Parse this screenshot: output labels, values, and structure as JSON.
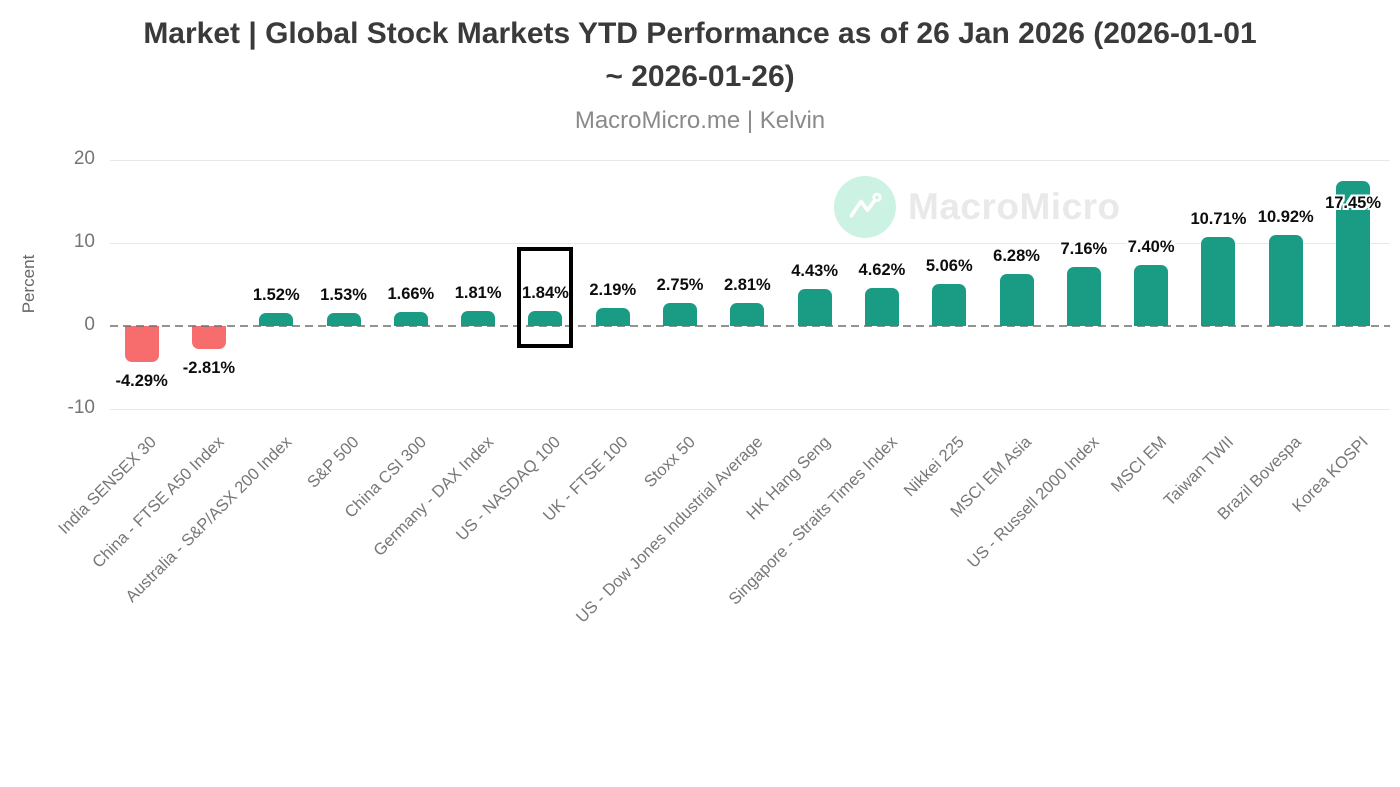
{
  "header": {
    "title": "Market | Global Stock Markets YTD Performance as of 26 Jan 2026 (2026-01-01 ~ 2026-01-26)",
    "title_line1": "Market | Global Stock Markets YTD Performance as of 26 Jan 2026 (2026-01-01",
    "title_line2": "~ 2026-01-26)",
    "subtitle": "MacroMicro.me | Kelvin"
  },
  "watermark": {
    "brand": "MacroMicro",
    "icon": "macromicro-logo-icon",
    "circle_color": "#ccf2e4",
    "text_color": "#e9e9e9"
  },
  "chart_data": {
    "type": "bar",
    "title": "Market | Global Stock Markets YTD Performance as of 26 Jan 2026 (2026-01-01 ~ 2026-01-26)",
    "subtitle": "MacroMicro.me | Kelvin",
    "xlabel": "",
    "ylabel": "Percent",
    "yticks": [
      20,
      10,
      0,
      -10
    ],
    "ylim": [
      -13,
      22
    ],
    "grid": true,
    "zero_line_style": "dashed",
    "x_label_rotation_deg": -45,
    "categories": [
      "India SENSEX 30",
      "China - FTSE A50 Index",
      "Australia - S&P/ASX 200 Index",
      "S&P 500",
      "China CSI 300",
      "Germany - DAX Index",
      "US - NASDAQ 100",
      "UK - FTSE 100",
      "Stoxx 50",
      "US - Dow Jones Industrial Average",
      "HK Hang Seng",
      "Singapore - Straits Times Index",
      "Nikkei 225",
      "MSCI EM Asia",
      "US - Russell 2000 Index",
      "MSCI EM",
      "Taiwan TWII",
      "Brazil Bovespa",
      "Korea KOSPI"
    ],
    "values": [
      -4.29,
      -2.81,
      1.52,
      1.53,
      1.66,
      1.81,
      1.84,
      2.19,
      2.75,
      2.81,
      4.43,
      4.62,
      5.06,
      6.28,
      7.16,
      7.4,
      10.71,
      10.92,
      17.45
    ],
    "labels": [
      "-4.29%",
      "-2.81%",
      "1.52%",
      "1.53%",
      "1.66%",
      "1.81%",
      "1.84%",
      "2.19%",
      "2.75%",
      "2.81%",
      "4.43%",
      "4.62%",
      "5.06%",
      "6.28%",
      "7.16%",
      "7.40%",
      "10.71%",
      "10.92%",
      "17.45%"
    ],
    "colors": {
      "positive": "#1a9c84",
      "negative": "#f76d6d",
      "highlight_border": "#000000"
    },
    "highlight": {
      "index": 6,
      "category": "US - NASDAQ 100"
    }
  }
}
